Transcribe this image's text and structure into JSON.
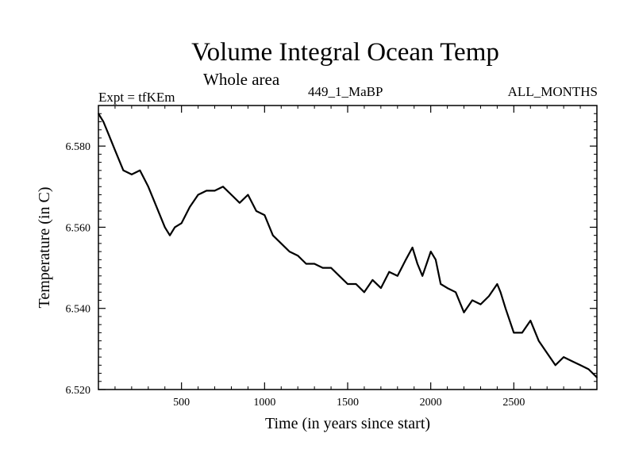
{
  "chart_data": {
    "type": "line",
    "title": "Volume Integral Ocean Temp",
    "subtitle": "Whole area",
    "left_label": "Expt = tfKEm",
    "center_label": "449_1_MaBP",
    "right_label": "ALL_MONTHS",
    "xlabel": "Time (in years since start)",
    "ylabel": "Temperature (in C)",
    "xlim": [
      0,
      3000
    ],
    "ylim": [
      6.52,
      6.59
    ],
    "x_ticks": [
      500,
      1000,
      1500,
      2000,
      2500
    ],
    "x_tick_labels": [
      "500",
      "1000",
      "1500",
      "2000",
      "2500"
    ],
    "y_ticks": [
      6.52,
      6.54,
      6.56,
      6.58
    ],
    "y_tick_labels": [
      "6.520",
      "6.540",
      "6.560",
      "6.580"
    ],
    "grid": false,
    "legend": "none",
    "line_color": "#000000",
    "series": [
      {
        "x": [
          0,
          30,
          60,
          100,
          150,
          200,
          250,
          300,
          350,
          400,
          430,
          460,
          500,
          550,
          600,
          650,
          700,
          750,
          800,
          850,
          900,
          950,
          1000,
          1050,
          1100,
          1150,
          1200,
          1250,
          1300,
          1350,
          1400,
          1450,
          1500,
          1550,
          1600,
          1650,
          1700,
          1750,
          1800,
          1850,
          1890,
          1920,
          1950,
          2000,
          2030,
          2060,
          2100,
          2150,
          2200,
          2250,
          2300,
          2350,
          2400,
          2420,
          2450,
          2500,
          2550,
          2600,
          2650,
          2700,
          2750,
          2800,
          2850,
          2900,
          2950,
          3000
        ],
        "values": [
          6.588,
          6.586,
          6.583,
          6.579,
          6.574,
          6.573,
          6.574,
          6.57,
          6.565,
          6.56,
          6.558,
          6.56,
          6.561,
          6.565,
          6.568,
          6.569,
          6.569,
          6.57,
          6.568,
          6.566,
          6.568,
          6.564,
          6.563,
          6.558,
          6.556,
          6.554,
          6.553,
          6.551,
          6.551,
          6.55,
          6.55,
          6.548,
          6.546,
          6.546,
          6.544,
          6.547,
          6.545,
          6.549,
          6.548,
          6.552,
          6.555,
          6.551,
          6.548,
          6.554,
          6.552,
          6.546,
          6.545,
          6.544,
          6.539,
          6.542,
          6.541,
          6.543,
          6.546,
          6.544,
          6.54,
          6.534,
          6.534,
          6.537,
          6.532,
          6.529,
          6.526,
          6.528,
          6.527,
          6.526,
          6.525,
          6.523
        ]
      }
    ]
  }
}
